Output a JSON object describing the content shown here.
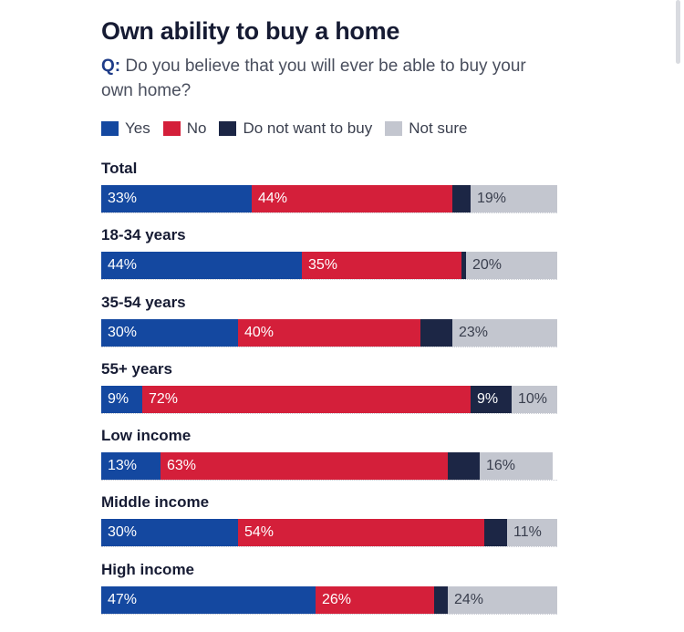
{
  "title": "Own ability to buy a home",
  "question": {
    "prefix": "Q:",
    "text": "Do you believe that you will ever be able to buy your own home?"
  },
  "legend": [
    {
      "label": "Yes",
      "color": "#1448a0",
      "icon": "yes-swatch"
    },
    {
      "label": "No",
      "color": "#d41f3a",
      "icon": "no-swatch"
    },
    {
      "label": "Do not want to buy",
      "color": "#1c2645",
      "icon": "do-not-want-swatch"
    },
    {
      "label": "Not sure",
      "color": "#c3c6cf",
      "icon": "not-sure-swatch"
    }
  ],
  "chart_data": {
    "type": "bar",
    "orientation": "horizontal",
    "stacked": true,
    "title": "Own ability to buy a home",
    "subtitle": "Q: Do you believe that you will ever be able to buy your own home?",
    "categories": [
      "Total",
      "18-34 years",
      "35-54 years",
      "55+ years",
      "Low income",
      "Middle income",
      "High income"
    ],
    "series": [
      {
        "name": "Yes",
        "color": "#1448a0",
        "text_color": "#ffffff",
        "values": [
          33,
          44,
          30,
          9,
          13,
          30,
          47
        ],
        "labels": [
          "33%",
          "44%",
          "30%",
          "9%",
          "13%",
          "30%",
          "47%"
        ]
      },
      {
        "name": "No",
        "color": "#d41f3a",
        "text_color": "#ffffff",
        "values": [
          44,
          35,
          40,
          72,
          63,
          54,
          26
        ],
        "labels": [
          "44%",
          "35%",
          "40%",
          "72%",
          "63%",
          "54%",
          "26%"
        ]
      },
      {
        "name": "Do not want to buy",
        "color": "#1c2645",
        "text_color": "#ffffff",
        "values": [
          4,
          1,
          7,
          9,
          7,
          5,
          3
        ],
        "labels": [
          "",
          "",
          "",
          "9%",
          "",
          "",
          ""
        ]
      },
      {
        "name": "Not sure",
        "color": "#c3c6cf",
        "text_color": "#3a3f4e",
        "values": [
          19,
          20,
          23,
          10,
          16,
          11,
          24
        ],
        "labels": [
          "19%",
          "20%",
          "23%",
          "10%",
          "16%",
          "11%",
          "24%"
        ]
      }
    ],
    "xlim": [
      0,
      100
    ],
    "legend_position": "top",
    "grid": false
  }
}
